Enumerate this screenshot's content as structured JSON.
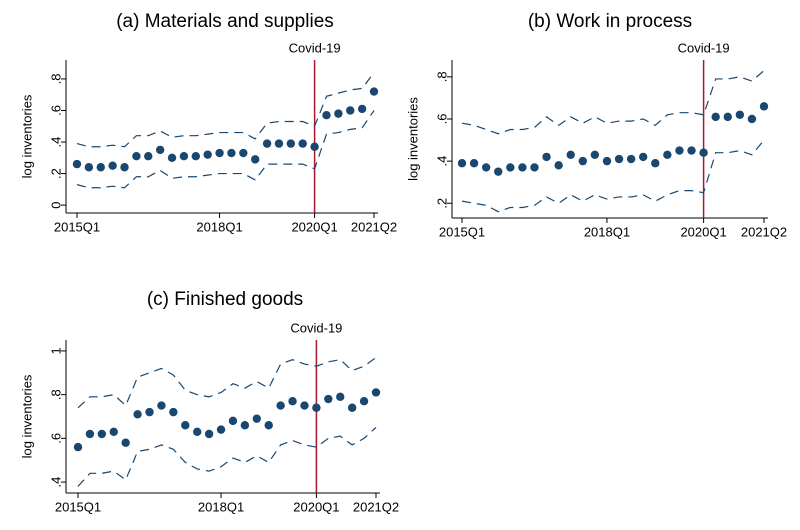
{
  "chart_data": [
    {
      "type": "line",
      "title": "(a) Materials and supplies",
      "y_label": "log inventories",
      "categories": [
        "2015Q1",
        null,
        null,
        null,
        null,
        null,
        null,
        null,
        null,
        null,
        null,
        null,
        "2018Q1",
        null,
        null,
        null,
        null,
        null,
        null,
        null,
        "2020Q1",
        null,
        null,
        null,
        null,
        "2021Q2"
      ],
      "series": [
        {
          "style": "markers",
          "color": "#1a476f",
          "values": [
            0.26,
            0.24,
            0.24,
            0.25,
            0.24,
            0.31,
            0.31,
            0.35,
            0.3,
            0.31,
            0.31,
            0.32,
            0.33,
            0.33,
            0.33,
            0.29,
            0.39,
            0.39,
            0.39,
            0.39,
            0.37,
            0.57,
            0.58,
            0.6,
            0.61,
            0.72
          ]
        },
        {
          "style": "dashed",
          "color": "#1a476f",
          "values": [
            0.39,
            0.37,
            0.37,
            0.38,
            0.37,
            0.44,
            0.44,
            0.47,
            0.43,
            0.44,
            0.44,
            0.45,
            0.46,
            0.46,
            0.46,
            0.42,
            0.52,
            0.53,
            0.53,
            0.53,
            0.5,
            0.69,
            0.71,
            0.73,
            0.74,
            0.84
          ]
        },
        {
          "style": "dashed",
          "color": "#1a476f",
          "values": [
            0.13,
            0.11,
            0.11,
            0.12,
            0.11,
            0.18,
            0.18,
            0.22,
            0.17,
            0.18,
            0.18,
            0.19,
            0.2,
            0.2,
            0.2,
            0.16,
            0.26,
            0.26,
            0.26,
            0.26,
            0.23,
            0.45,
            0.46,
            0.48,
            0.49,
            0.6
          ]
        }
      ],
      "ylim": [
        -0.05,
        0.92
      ],
      "yticks": [
        0,
        {
          "value": 0.2,
          "label": ".2"
        },
        {
          "value": 0.4,
          "label": ".4"
        },
        {
          "value": 0.6,
          "label": ".6"
        },
        {
          "value": 0.8,
          "label": ".8"
        }
      ],
      "annotation": {
        "text": "Covid-19",
        "x": "2020Q1",
        "color": "#a6192e"
      }
    },
    {
      "type": "line",
      "title": "(b) Work in process",
      "y_label": "log inventories",
      "categories": [
        "2015Q1",
        null,
        null,
        null,
        null,
        null,
        null,
        null,
        null,
        null,
        null,
        null,
        "2018Q1",
        null,
        null,
        null,
        null,
        null,
        null,
        null,
        "2020Q1",
        null,
        null,
        null,
        null,
        "2021Q2"
      ],
      "series": [
        {
          "style": "markers",
          "color": "#1a476f",
          "values": [
            0.39,
            0.39,
            0.37,
            0.35,
            0.37,
            0.37,
            0.37,
            0.42,
            0.38,
            0.43,
            0.4,
            0.43,
            0.4,
            0.41,
            0.41,
            0.42,
            0.39,
            0.43,
            0.45,
            0.45,
            0.44,
            0.61,
            0.61,
            0.62,
            0.6,
            0.66
          ]
        },
        {
          "style": "dashed",
          "color": "#1a476f",
          "values": [
            0.58,
            0.57,
            0.55,
            0.53,
            0.55,
            0.55,
            0.56,
            0.61,
            0.57,
            0.61,
            0.58,
            0.61,
            0.58,
            0.59,
            0.59,
            0.6,
            0.57,
            0.62,
            0.63,
            0.63,
            0.62,
            0.79,
            0.79,
            0.8,
            0.78,
            0.83
          ]
        },
        {
          "style": "dashed",
          "color": "#1a476f",
          "values": [
            0.21,
            0.2,
            0.19,
            0.16,
            0.18,
            0.18,
            0.19,
            0.23,
            0.2,
            0.24,
            0.21,
            0.24,
            0.22,
            0.23,
            0.23,
            0.24,
            0.21,
            0.24,
            0.26,
            0.26,
            0.25,
            0.44,
            0.44,
            0.45,
            0.43,
            0.5
          ]
        }
      ],
      "ylim": [
        0.13,
        0.88
      ],
      "yticks": [
        {
          "value": 0.2,
          "label": ".2"
        },
        {
          "value": 0.4,
          "label": ".4"
        },
        {
          "value": 0.6,
          "label": ".6"
        },
        {
          "value": 0.8,
          "label": ".8"
        }
      ],
      "annotation": {
        "text": "Covid-19",
        "x": "2020Q1",
        "color": "#a6192e"
      }
    },
    {
      "type": "line",
      "title": "(c) Finished goods",
      "y_label": "log inventories",
      "categories": [
        "2015Q1",
        null,
        null,
        null,
        null,
        null,
        null,
        null,
        null,
        null,
        null,
        null,
        "2018Q1",
        null,
        null,
        null,
        null,
        null,
        null,
        null,
        "2020Q1",
        null,
        null,
        null,
        null,
        "2021Q2"
      ],
      "series": [
        {
          "style": "markers",
          "color": "#1a476f",
          "values": [
            0.56,
            0.62,
            0.62,
            0.63,
            0.58,
            0.71,
            0.72,
            0.75,
            0.72,
            0.66,
            0.63,
            0.62,
            0.64,
            0.68,
            0.66,
            0.69,
            0.66,
            0.75,
            0.77,
            0.75,
            0.74,
            0.78,
            0.79,
            0.74,
            0.77,
            0.81
          ]
        },
        {
          "style": "dashed",
          "color": "#1a476f",
          "values": [
            0.74,
            0.79,
            0.79,
            0.8,
            0.75,
            0.88,
            0.9,
            0.92,
            0.89,
            0.82,
            0.8,
            0.79,
            0.81,
            0.85,
            0.83,
            0.86,
            0.83,
            0.94,
            0.96,
            0.94,
            0.93,
            0.95,
            0.96,
            0.91,
            0.93,
            0.97
          ]
        },
        {
          "style": "dashed",
          "color": "#1a476f",
          "values": [
            0.38,
            0.44,
            0.44,
            0.45,
            0.41,
            0.54,
            0.55,
            0.57,
            0.55,
            0.49,
            0.46,
            0.45,
            0.47,
            0.51,
            0.49,
            0.52,
            0.49,
            0.57,
            0.59,
            0.57,
            0.56,
            0.6,
            0.61,
            0.57,
            0.6,
            0.65
          ]
        }
      ],
      "ylim": [
        0.35,
        1.05
      ],
      "yticks": [
        {
          "value": 0.4,
          "label": ".4"
        },
        {
          "value": 0.6,
          "label": ".6"
        },
        {
          "value": 0.8,
          "label": ".8"
        },
        1
      ],
      "annotation": {
        "text": "Covid-19",
        "x": "2020Q1",
        "color": "#a6192e"
      }
    }
  ]
}
